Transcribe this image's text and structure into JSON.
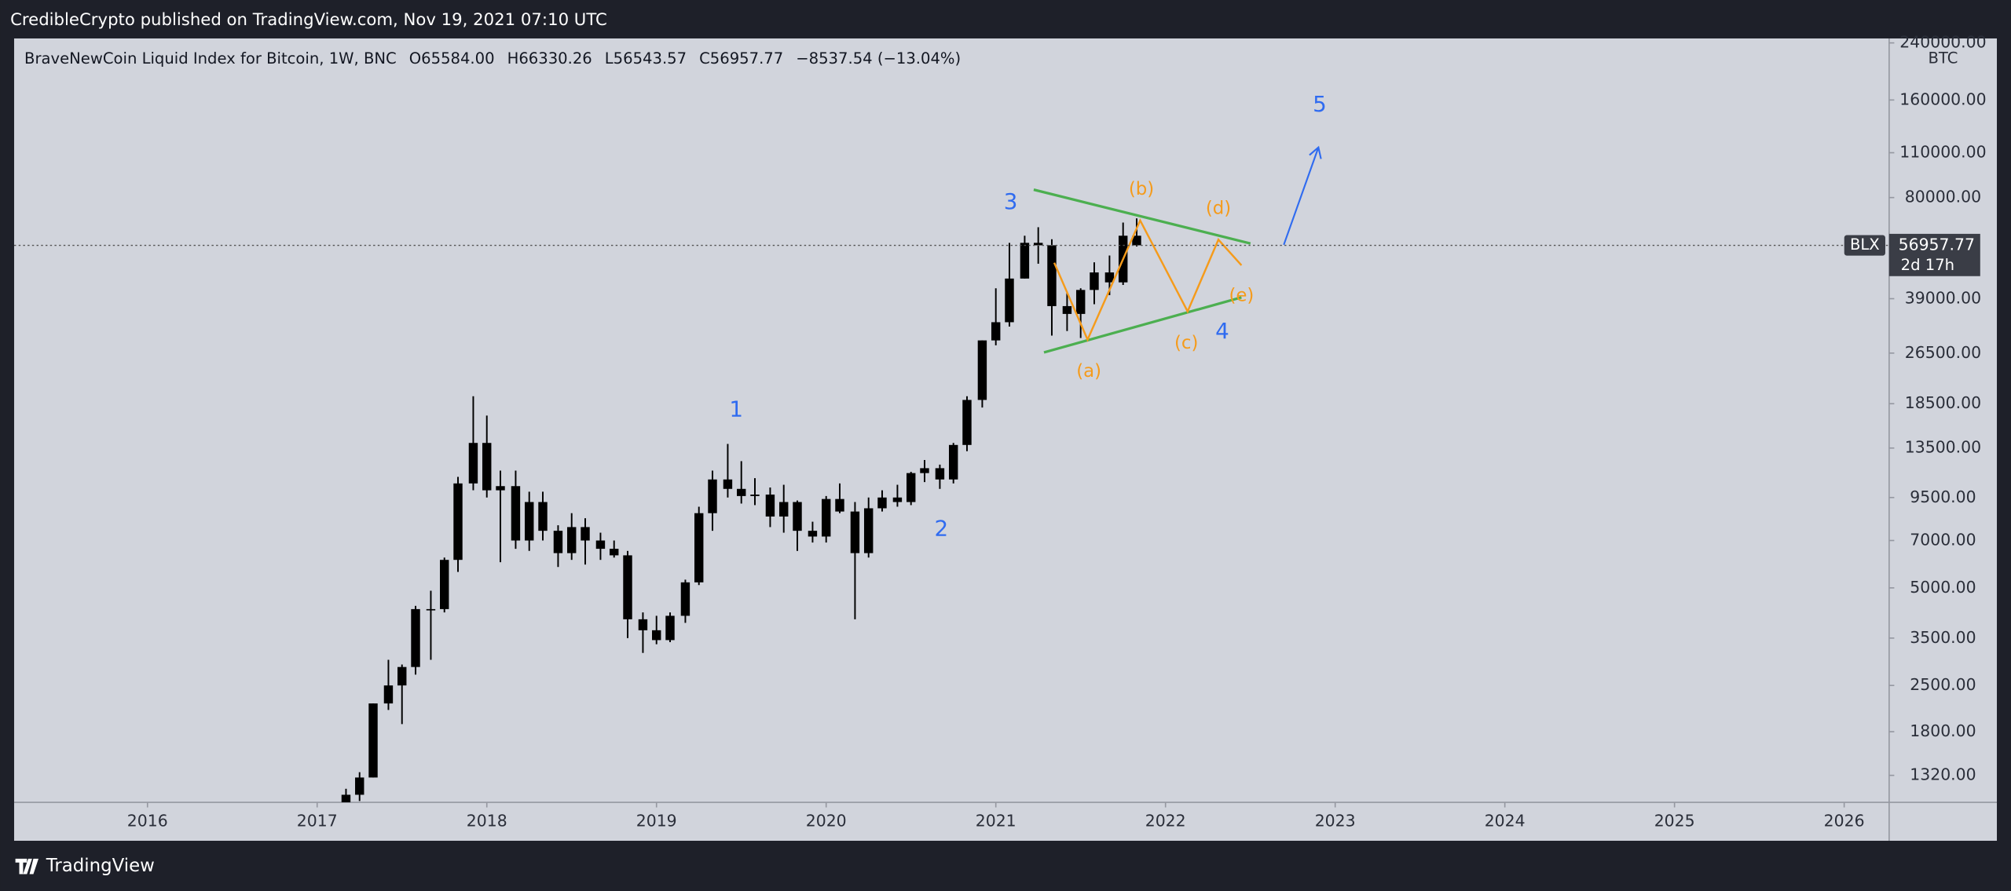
{
  "chart_data": {
    "type": "candlestick",
    "published": "CredibleCrypto published on TradingView.com, Nov 19, 2021 07:10 UTC",
    "instrument": "BraveNewCoin Liquid Index for Bitcoin, 1W, BNC",
    "legend_open": "O65584.00",
    "legend_high": "H66330.26",
    "legend_low": "L56543.57",
    "legend_close": "C56957.77",
    "legend_change": "−8537.54 (−13.04%)",
    "currency": "BTC",
    "symbol": "BLX",
    "countdown": "2d 17h",
    "last_price": {
      "value": 56957.77,
      "label": "56957.77"
    },
    "brand": "TradingView",
    "log_scale": true,
    "up_color": "#000000",
    "down_color": "#000000",
    "x": [
      2017.17,
      2017.25,
      2017.33,
      2017.42,
      2017.5,
      2017.58,
      2017.67,
      2017.75,
      2017.83,
      2017.92,
      2018.0,
      2018.08,
      2018.17,
      2018.25,
      2018.33,
      2018.42,
      2018.5,
      2018.58,
      2018.67,
      2018.75,
      2018.83,
      2018.92,
      2019.0,
      2019.08,
      2019.17,
      2019.25,
      2019.33,
      2019.42,
      2019.5,
      2019.58,
      2019.67,
      2019.75,
      2019.83,
      2019.92,
      2020.0,
      2020.08,
      2020.17,
      2020.25,
      2020.33,
      2020.42,
      2020.5,
      2020.58,
      2020.67,
      2020.75,
      2020.83,
      2020.92,
      2021.0,
      2021.08,
      2021.17,
      2021.25,
      2021.33,
      2021.42,
      2021.5,
      2021.58,
      2021.67,
      2021.75,
      2021.83
    ],
    "open": [
      1050,
      1150,
      1300,
      2200,
      2500,
      2850,
      4300,
      4300,
      6100,
      10500,
      14000,
      10000,
      10300,
      7000,
      9200,
      7500,
      6400,
      7700,
      7000,
      6600,
      6300,
      4000,
      3700,
      3450,
      4100,
      5200,
      8500,
      10800,
      10100,
      9600,
      9700,
      8300,
      9200,
      7500,
      7200,
      9400,
      8600,
      6400,
      8800,
      9500,
      9200,
      11300,
      11700,
      10800,
      13800,
      19000,
      29000,
      33000,
      45000,
      58000,
      57000,
      37000,
      35000,
      41500,
      47000,
      43800,
      61000
    ],
    "high": [
      1200,
      1350,
      2200,
      3000,
      2900,
      4400,
      4900,
      6200,
      11000,
      19500,
      17000,
      11500,
      11500,
      9900,
      9900,
      7800,
      8500,
      8200,
      7400,
      7000,
      6500,
      4200,
      4100,
      4200,
      5300,
      8900,
      11500,
      13900,
      12300,
      10900,
      10200,
      10400,
      9300,
      8000,
      9600,
      10500,
      9200,
      9500,
      10000,
      10400,
      11400,
      12400,
      12000,
      14000,
      19500,
      29000,
      42000,
      58000,
      61000,
      64800,
      59500,
      41000,
      42000,
      50500,
      53000,
      67000,
      69000
    ],
    "low": [
      1000,
      1100,
      1300,
      2100,
      1900,
      2700,
      3000,
      4200,
      5600,
      10000,
      9500,
      6000,
      6600,
      6500,
      7000,
      5800,
      6100,
      5900,
      6100,
      6200,
      3500,
      3150,
      3350,
      3400,
      3900,
      5100,
      7500,
      9500,
      9100,
      9000,
      7700,
      7400,
      6500,
      6900,
      6900,
      8500,
      4000,
      6200,
      8600,
      8900,
      9000,
      10600,
      10100,
      10500,
      13200,
      18000,
      28000,
      32000,
      45000,
      50000,
      30000,
      31000,
      29500,
      37500,
      40000,
      43000,
      56500
    ],
    "close": [
      1150,
      1300,
      2200,
      2500,
      2850,
      4300,
      4300,
      6100,
      10500,
      14000,
      10000,
      10300,
      7000,
      9200,
      7500,
      6400,
      7700,
      7000,
      6600,
      6300,
      4000,
      3700,
      3450,
      4100,
      5200,
      8500,
      10800,
      10100,
      9600,
      9700,
      8300,
      9200,
      7500,
      7200,
      9400,
      8600,
      6400,
      8800,
      9500,
      9200,
      11300,
      11700,
      10800,
      13800,
      19000,
      29000,
      33000,
      45000,
      58000,
      57000,
      37000,
      35000,
      41500,
      47000,
      43800,
      61000,
      57000
    ],
    "xlim": [
      2015.214,
      2026.265
    ],
    "xticks": [
      2016,
      2017,
      2018,
      2019,
      2020,
      2021,
      2022,
      2023,
      2024,
      2025,
      2026
    ],
    "ylim": [
      1090,
      247700
    ],
    "yticks": [
      {
        "value": 1320,
        "label": "1320.00"
      },
      {
        "value": 1800,
        "label": "1800.00"
      },
      {
        "value": 2500,
        "label": "2500.00"
      },
      {
        "value": 3500,
        "label": "3500.00"
      },
      {
        "value": 5000,
        "label": "5000.00"
      },
      {
        "value": 7000,
        "label": "7000.00"
      },
      {
        "value": 9500,
        "label": "9500.00"
      },
      {
        "value": 13500,
        "label": "13500.00"
      },
      {
        "value": 18500,
        "label": "18500.00"
      },
      {
        "value": 26500,
        "label": "26500.00"
      },
      {
        "value": 39000,
        "label": "39000.00"
      },
      {
        "value": 80000,
        "label": "80000.00"
      },
      {
        "value": 110000,
        "label": "110000.00"
      },
      {
        "value": 160000,
        "label": "160000.00"
      },
      {
        "value": 240000,
        "label": "240000.00"
      }
    ],
    "wave_labels": [
      "1",
      "2",
      "3",
      "4",
      "5"
    ],
    "sub_wave_labels": [
      "(a)",
      "(b)",
      "(c)",
      "(d)",
      "(e)"
    ]
  }
}
